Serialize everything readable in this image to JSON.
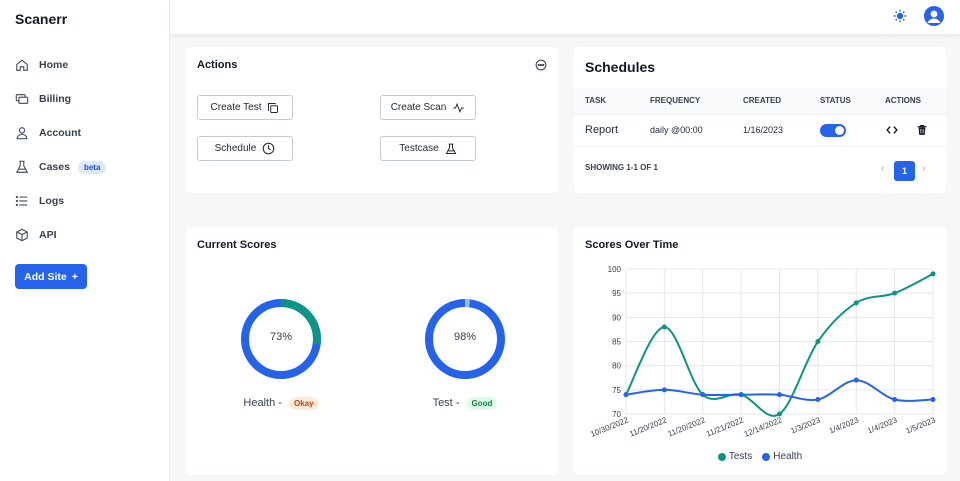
{
  "app": {
    "brand": "Scanerr"
  },
  "sidebar": {
    "items": [
      {
        "label": "Home",
        "icon": "home-icon"
      },
      {
        "label": "Billing",
        "icon": "billing-icon"
      },
      {
        "label": "Account",
        "icon": "user-icon"
      },
      {
        "label": "Cases",
        "icon": "flask-icon",
        "badge": "beta"
      },
      {
        "label": "Logs",
        "icon": "list-icon"
      },
      {
        "label": "API",
        "icon": "cube-icon"
      }
    ],
    "add_site_label": "Add Site",
    "add_site_symbol": "+"
  },
  "topbar": {
    "theme_icon": "sun-icon",
    "avatar_icon": "user-avatar-icon"
  },
  "actions": {
    "title": "Actions",
    "buttons": [
      {
        "label": "Create Test",
        "icon": "copy-icon"
      },
      {
        "label": "Create Scan",
        "icon": "activity-icon"
      },
      {
        "label": "Schedule",
        "icon": "clock-icon"
      },
      {
        "label": "Testcase",
        "icon": "flask-icon"
      }
    ]
  },
  "schedules": {
    "title": "Schedules",
    "columns": [
      "TASK",
      "FREQUENCY",
      "CREATED",
      "STATUS",
      "ACTIONS"
    ],
    "rows": [
      {
        "task": "Report",
        "frequency": "daily @00:00",
        "created": "1/16/2023",
        "status": "on"
      }
    ],
    "showing": "SHOWING 1-1 OF 1",
    "page": "1",
    "prev": "‹",
    "next": "›"
  },
  "current_scores": {
    "title": "Current Scores",
    "items": [
      {
        "value": 73,
        "label": "73%",
        "name": "Health -",
        "status": "Okay",
        "ring_color": "#2563eb",
        "segment_color": "#0d9488",
        "pill_bg": "#fdebd8",
        "pill_color": "#c2410c"
      },
      {
        "value": 98,
        "label": "98%",
        "name": "Test -",
        "status": "Good",
        "ring_color": "#2563eb",
        "segment_color": "#93c5fd",
        "pill_bg": "#dcfce7",
        "pill_color": "#15803d"
      }
    ]
  },
  "chart_data": {
    "type": "line",
    "title": "Scores Over Time",
    "categories": [
      "10/30/2022",
      "11/20/2022",
      "11/20/2022",
      "11/21/2022",
      "12/14/2022",
      "1/3/2023",
      "1/4/2023",
      "1/4/2023",
      "1/5/2023"
    ],
    "series": [
      {
        "name": "Tests",
        "color": "#0d9488",
        "values": [
          74,
          88,
          74,
          74,
          70,
          85,
          93,
          95,
          99
        ]
      },
      {
        "name": "Health",
        "color": "#2563eb",
        "values": [
          74,
          75,
          74,
          74,
          74,
          73,
          77,
          73,
          73
        ]
      }
    ],
    "ylim": [
      70,
      100
    ],
    "yticks": [
      70,
      75,
      80,
      85,
      90,
      95,
      100
    ],
    "grid": true,
    "legend": "bottom"
  }
}
